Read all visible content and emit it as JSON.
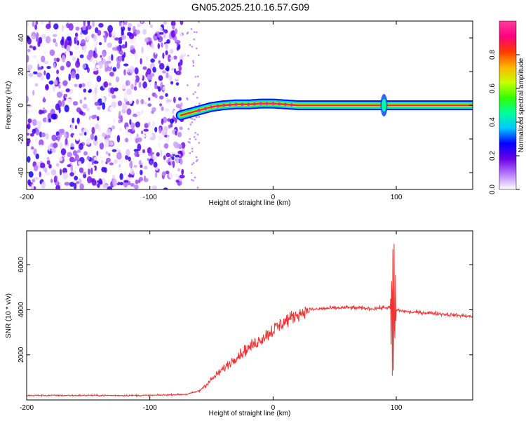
{
  "figure": {
    "title": "GN05.2025.210.16.57.G09"
  },
  "chart_data": [
    {
      "type": "heatmap",
      "title": "GN05.2025.210.16.57.G09",
      "xlabel": "Height of straight line (km)",
      "ylabel": "Frequency (Hz)",
      "xlim": [
        -200,
        162
      ],
      "ylim": [
        -50,
        50
      ],
      "x_ticks": [
        -200,
        -100,
        0,
        100
      ],
      "y_ticks": [
        -40,
        -20,
        0,
        20,
        40
      ],
      "colorbar": {
        "label": "Normalized spectral amplitude",
        "range": [
          0,
          1
        ],
        "ticks": [
          0.0,
          0.2,
          0.4,
          0.6,
          0.8
        ],
        "colormap": [
          "#ffffff",
          "#b77cff",
          "#6a00e6",
          "#0000ff",
          "#00c8ff",
          "#00ff9a",
          "#33ff00",
          "#c8ff00",
          "#ffb400",
          "#ff3a00",
          "#ff0080",
          "#ff3ca0"
        ]
      },
      "ridge": {
        "description_points_x": [
          -75,
          -70,
          -60,
          -50,
          -40,
          -30,
          -20,
          -10,
          0,
          10,
          20,
          40,
          60,
          80,
          100,
          120,
          140,
          162
        ],
        "description_points_y": [
          -6,
          -5,
          -3,
          -1,
          0,
          0.5,
          0.5,
          1,
          1,
          0.5,
          0,
          0,
          0,
          0,
          0,
          0,
          0,
          0
        ]
      },
      "noise_region_x": [
        -200,
        -70
      ],
      "grid": false
    },
    {
      "type": "line",
      "xlabel": "Height of straight line (km)",
      "ylabel": "SNR (10 * v/v)",
      "xlim": [
        -200,
        162
      ],
      "ylim": [
        0,
        7500
      ],
      "x_ticks": [
        -200,
        -100,
        0,
        100
      ],
      "y_ticks": [
        2000,
        4000,
        6000
      ],
      "color": "#ee3333",
      "envelope": {
        "x": [
          -200,
          -150,
          -100,
          -70,
          -60,
          -50,
          -40,
          -30,
          -20,
          -10,
          0,
          10,
          20,
          30,
          40,
          60,
          80,
          90,
          95,
          100,
          105,
          110,
          130,
          150,
          162
        ],
        "y": [
          200,
          200,
          200,
          250,
          400,
          900,
          1400,
          1900,
          2300,
          2700,
          3100,
          3500,
          3800,
          4000,
          4050,
          4100,
          4050,
          4100,
          4100,
          4000,
          3950,
          3900,
          3850,
          3750,
          3700
        ]
      },
      "burst": {
        "x": [
          95,
          100
        ],
        "max": 7500,
        "min": 300
      },
      "grid": false
    }
  ]
}
